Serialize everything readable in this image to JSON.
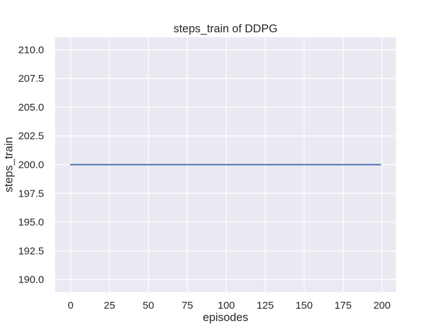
{
  "figure": {
    "background": "#ffffff"
  },
  "chart_data": {
    "type": "line",
    "title": "steps_train of DDPG",
    "xlabel": "episodes",
    "ylabel": "steps_train",
    "plot_background": "#eaeaf2",
    "grid": true,
    "grid_color": "#ffffff",
    "text_color": "#262626",
    "legend": null,
    "xlim": [
      -10,
      209
    ],
    "ylim": [
      188.9,
      211.1
    ],
    "xticks": [
      0,
      25,
      50,
      75,
      100,
      125,
      150,
      175,
      200
    ],
    "xtick_labels": [
      "0",
      "25",
      "50",
      "75",
      "100",
      "125",
      "150",
      "175",
      "200"
    ],
    "yticks": [
      190,
      192.5,
      195,
      197.5,
      200,
      202.5,
      205,
      207.5,
      210
    ],
    "ytick_labels": [
      "190.0",
      "192.5",
      "195.0",
      "197.5",
      "200.0",
      "202.5",
      "205.0",
      "207.5",
      "210.0"
    ],
    "series": [
      {
        "name": "steps_train",
        "color": "#4c72b0",
        "line_width": 2,
        "x": [
          0,
          199
        ],
        "y": [
          200,
          200
        ]
      }
    ]
  }
}
